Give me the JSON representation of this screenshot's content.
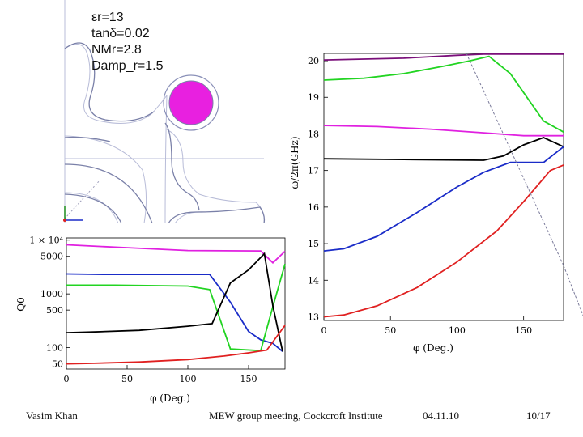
{
  "simulation": {
    "params": [
      "εr=13",
      "tanδ=0.02",
      "NMr=2.8",
      "Damp_r=1.5"
    ]
  },
  "footer": {
    "author": "Vasim Khan",
    "event": "MEW group meeting, Cockcroft Institute",
    "date": "04.11.10",
    "page": "10/17"
  },
  "chart_data": [
    {
      "type": "line",
      "title": "",
      "xlabel": "φ (Deg.)",
      "ylabel": "ω/2π(GHz)",
      "xlim": [
        0,
        180
      ],
      "ylim": [
        12.9,
        20.2
      ],
      "xticks": [
        0,
        50,
        100,
        150
      ],
      "yticks": [
        13,
        14,
        15,
        16,
        17,
        18,
        19,
        20
      ],
      "series": [
        {
          "name": "purple",
          "color": "#7a0f7a",
          "x": [
            0,
            60,
            100,
            120,
            150,
            180
          ],
          "values": [
            20.02,
            20.07,
            20.15,
            20.18,
            20.18,
            20.18
          ],
          "dash": false
        },
        {
          "name": "green",
          "color": "#22d422",
          "x": [
            0,
            30,
            60,
            90,
            110,
            124,
            140,
            165,
            180
          ],
          "values": [
            19.47,
            19.52,
            19.65,
            19.85,
            20.0,
            20.12,
            19.65,
            18.35,
            18.05
          ],
          "dash": false
        },
        {
          "name": "magenta",
          "color": "#e020e0",
          "x": [
            0,
            40,
            80,
            120,
            150,
            180
          ],
          "values": [
            18.23,
            18.2,
            18.13,
            18.03,
            17.95,
            17.95
          ],
          "dash": false
        },
        {
          "name": "black",
          "color": "#000000",
          "x": [
            0,
            60,
            120,
            135,
            150,
            165,
            180
          ],
          "values": [
            17.32,
            17.3,
            17.28,
            17.4,
            17.7,
            17.9,
            17.65
          ],
          "dash": false
        },
        {
          "name": "blue",
          "color": "#1a2cc8",
          "x": [
            0,
            15,
            40,
            70,
            100,
            120,
            140,
            165,
            180
          ],
          "values": [
            14.8,
            14.86,
            15.2,
            15.85,
            16.55,
            16.95,
            17.22,
            17.22,
            17.65
          ],
          "dash": false
        },
        {
          "name": "red",
          "color": "#e02020",
          "x": [
            0,
            15,
            40,
            70,
            100,
            130,
            150,
            170,
            180
          ],
          "values": [
            13.0,
            13.05,
            13.3,
            13.8,
            14.5,
            15.35,
            16.15,
            17.0,
            17.15
          ],
          "dash": false
        },
        {
          "name": "light-line",
          "color": "#7a7a9a",
          "x": [
            107,
            180
          ],
          "values": [
            20.2,
            14.4
          ],
          "dash": true
        },
        {
          "name": "light-line-2",
          "color": "#7a7a9a",
          "x": [
            180,
            195
          ],
          "values": [
            14.4,
            13.0
          ],
          "dash": true
        }
      ]
    },
    {
      "type": "line",
      "title": "",
      "xlabel": "φ (Deg.)",
      "ylabel": "Q0",
      "yscale": "log",
      "xlim": [
        0,
        180
      ],
      "ylim": [
        40,
        11000
      ],
      "xticks": [
        0,
        50,
        100,
        150
      ],
      "ytick_values": [
        10000,
        5000,
        1000,
        500,
        100,
        50
      ],
      "ytick_labels": [
        "1 × 10⁴",
        "5000",
        "1000",
        "500",
        "100",
        "50"
      ],
      "series": [
        {
          "name": "magenta",
          "color": "#e020e0",
          "x": [
            0,
            40,
            100,
            160,
            170,
            180
          ],
          "values": [
            8200,
            7400,
            6400,
            6300,
            3800,
            6200
          ]
        },
        {
          "name": "blue",
          "color": "#1a2cc8",
          "x": [
            0,
            30,
            80,
            118,
            135,
            150,
            160,
            170,
            178
          ],
          "values": [
            2350,
            2300,
            2300,
            2300,
            700,
            200,
            140,
            120,
            85
          ]
        },
        {
          "name": "green",
          "color": "#22d422",
          "x": [
            0,
            40,
            100,
            118,
            135,
            160,
            170,
            180
          ],
          "values": [
            1450,
            1450,
            1400,
            1200,
            95,
            88,
            580,
            3600
          ]
        },
        {
          "name": "black",
          "color": "#000000",
          "x": [
            0,
            20,
            60,
            100,
            120,
            135,
            150,
            163,
            170,
            178
          ],
          "values": [
            190,
            195,
            210,
            250,
            280,
            1600,
            2800,
            5600,
            600,
            85
          ]
        },
        {
          "name": "red",
          "color": "#e02020",
          "x": [
            0,
            20,
            60,
            100,
            130,
            150,
            165,
            180
          ],
          "values": [
            50,
            51,
            54,
            60,
            70,
            80,
            90,
            260
          ]
        }
      ]
    }
  ]
}
